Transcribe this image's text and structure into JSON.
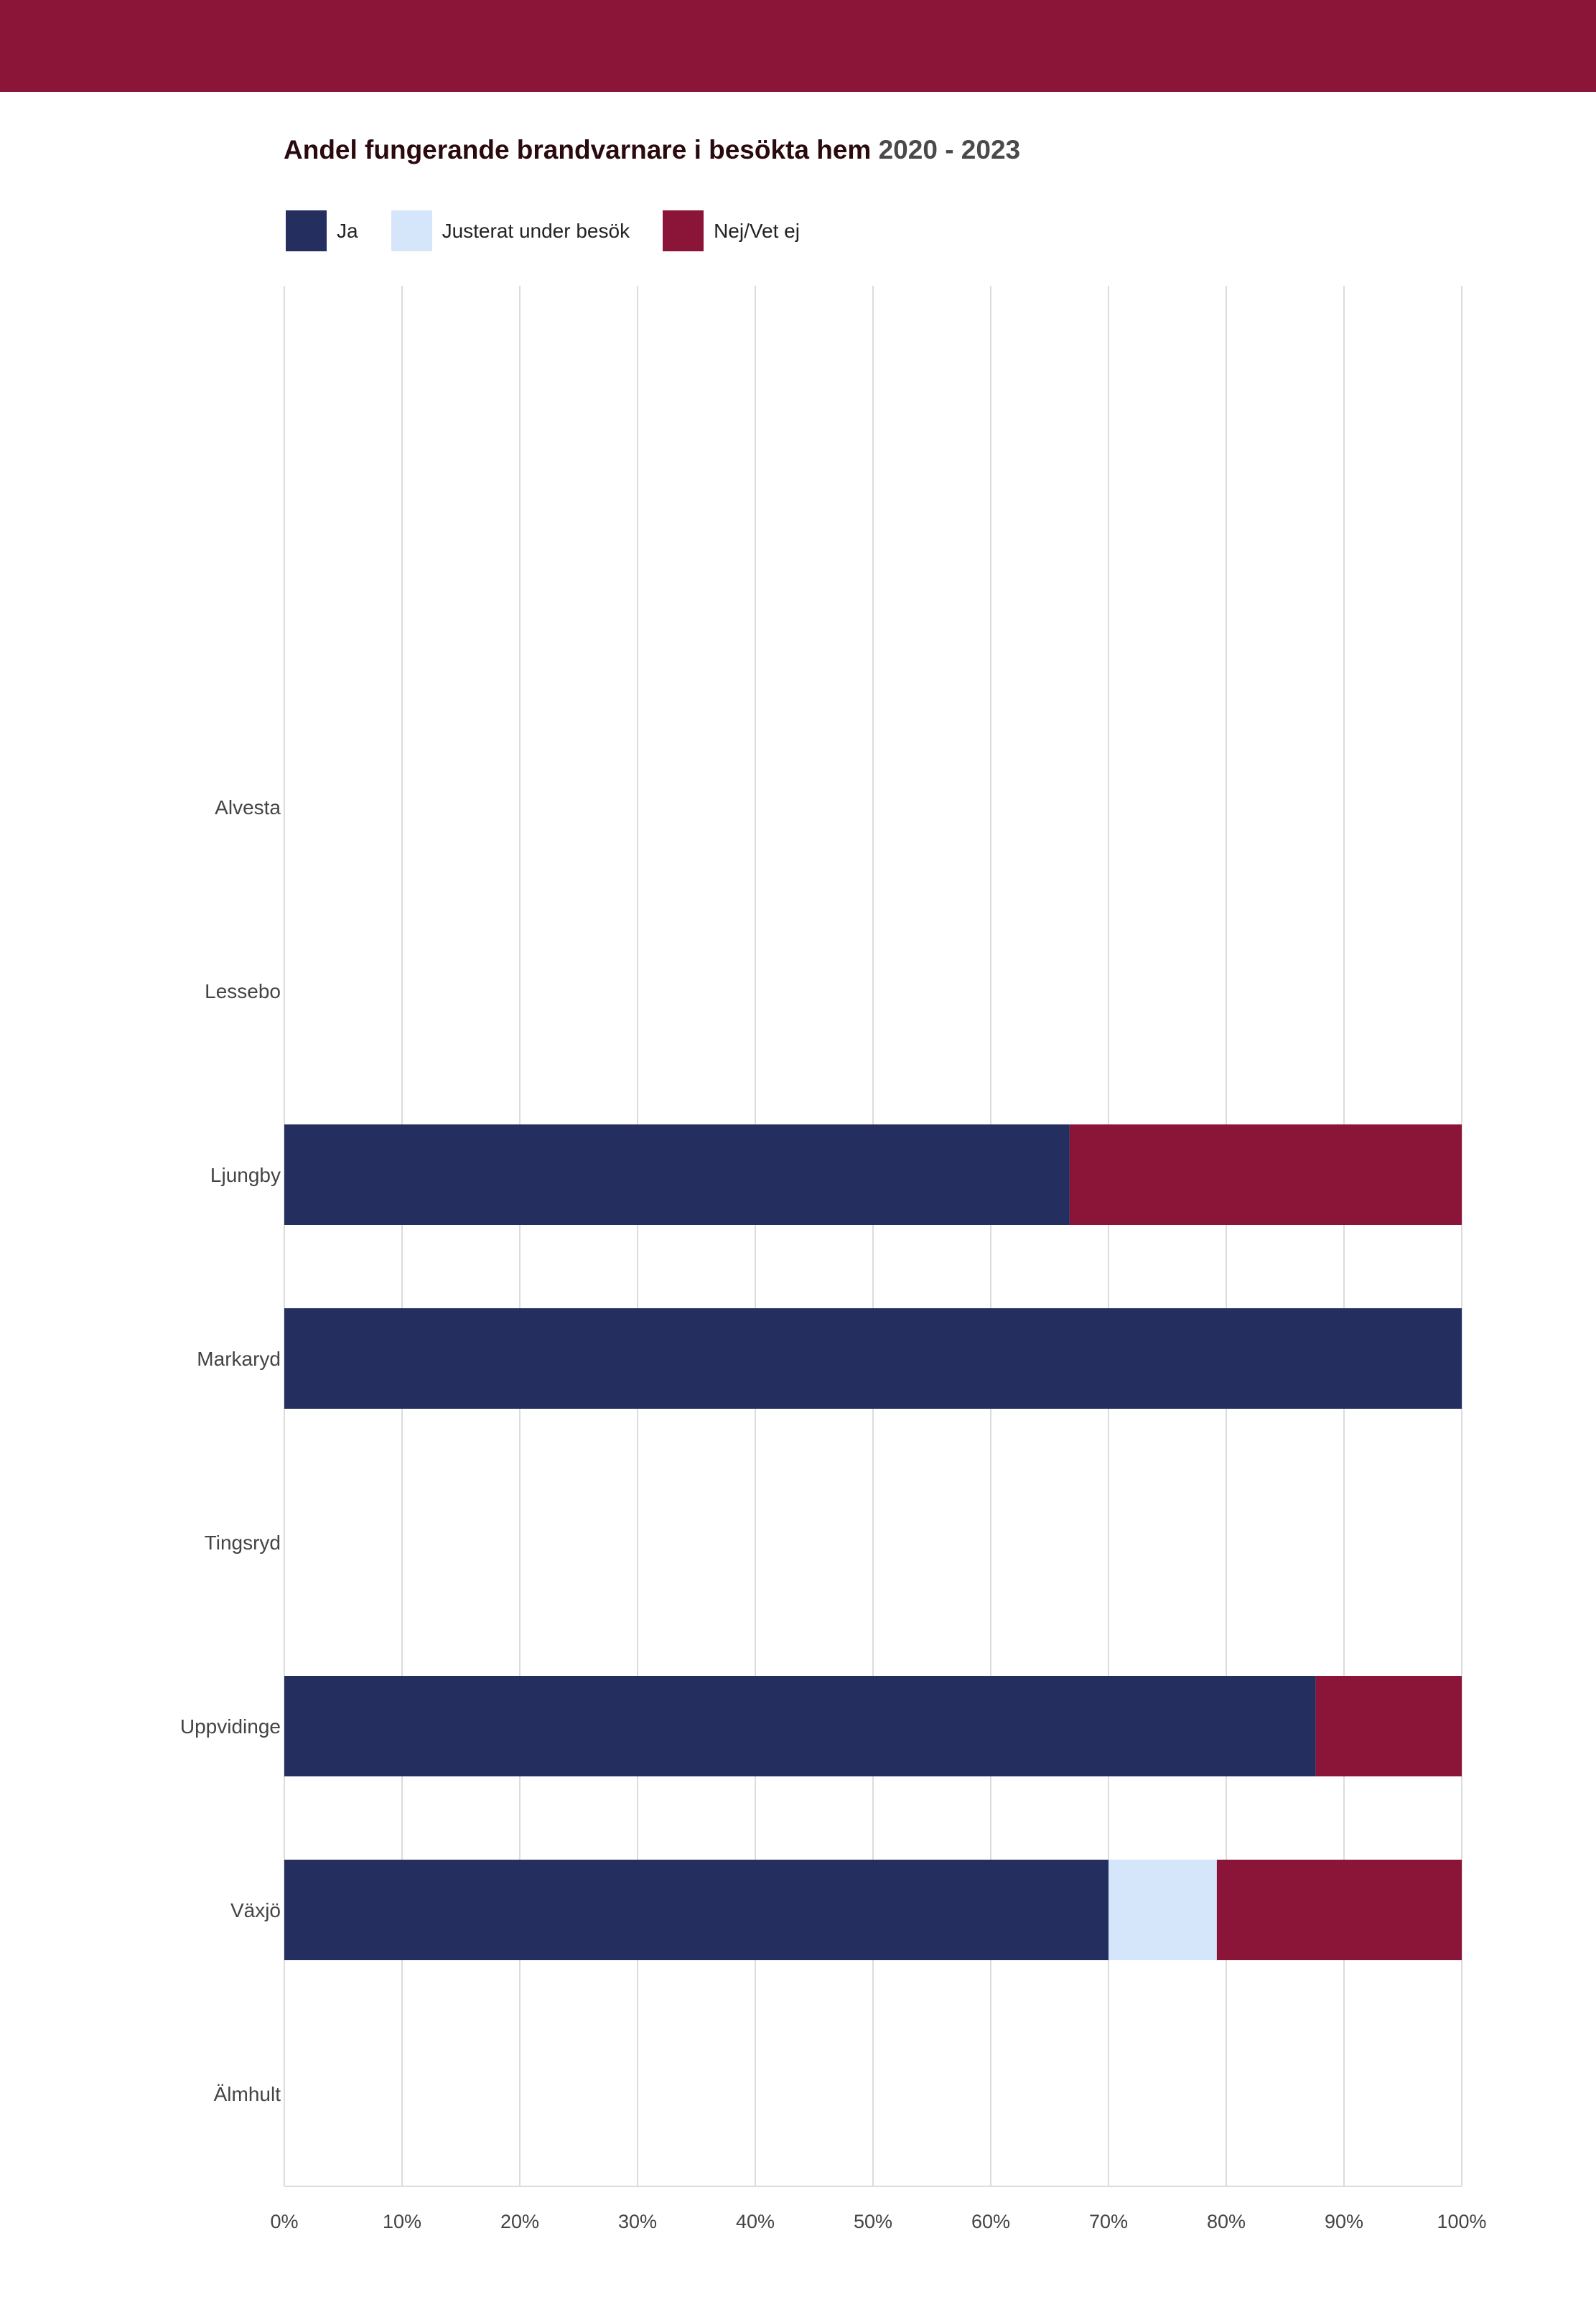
{
  "colors": {
    "brand": "#8a1538",
    "ja": "#242f60",
    "justerat": "#d6e6fa",
    "nej": "#8a1538",
    "grid": "#dcdcdc"
  },
  "chart_data": {
    "type": "bar",
    "orientation": "horizontal",
    "stacked": true,
    "title": "Andel fungerande brandvarnare i besökta hem",
    "title_years": "2020 - 2023",
    "xlabel": "",
    "ylabel": "",
    "xlim": [
      0,
      100
    ],
    "grid": true,
    "legend_position": "top-left",
    "categories": [
      "Alvesta",
      "Lessebo",
      "Ljungby",
      "Markaryd",
      "Tingsryd",
      "Uppvidinge",
      "Växjö",
      "Älmhult"
    ],
    "series": [
      {
        "name": "Ja",
        "color": "#242f60",
        "values": [
          0,
          0,
          66.7,
          100,
          0,
          87.6,
          70.0,
          0
        ]
      },
      {
        "name": "Justerat under besök",
        "color": "#d6e6fa",
        "values": [
          0,
          0,
          0,
          0,
          0,
          0,
          9.2,
          0
        ]
      },
      {
        "name": "Nej/Vet ej",
        "color": "#8a1538",
        "values": [
          0,
          0,
          33.3,
          0,
          0,
          12.4,
          20.8,
          0
        ]
      }
    ],
    "xticks": [
      "0%",
      "10%",
      "20%",
      "30%",
      "40%",
      "50%",
      "60%",
      "70%",
      "80%",
      "90%",
      "100%"
    ]
  }
}
